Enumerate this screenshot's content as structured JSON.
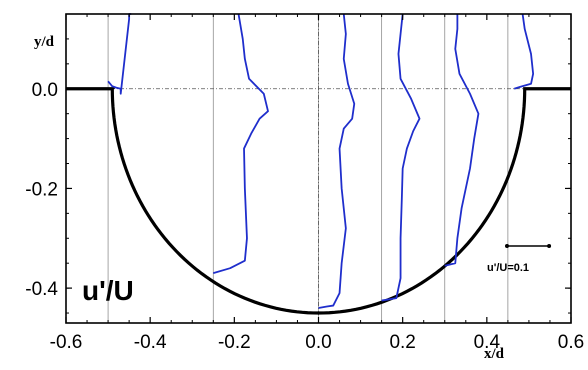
{
  "chart_data": {
    "type": "line",
    "xlabel": "x/d",
    "ylabel": "y/d",
    "panel_label": "u'/U",
    "scale_bar": {
      "label": "u'/U=0.1",
      "value": 0.1
    },
    "xlim": [
      -0.6,
      0.6
    ],
    "ylim": [
      -0.47,
      0.15
    ],
    "x_ticks": [
      -0.6,
      -0.4,
      -0.2,
      0.0,
      0.2,
      0.4,
      0.6
    ],
    "x_tick_labels": [
      "-0.6",
      "-0.4",
      "-0.2",
      "0.0",
      "0.2",
      "0.4",
      "0.6"
    ],
    "y_ticks": [
      0.0,
      -0.2,
      -0.4
    ],
    "y_tick_labels": [
      "0.0",
      "-0.2",
      "-0.4"
    ],
    "colors": {
      "profile": "#1f2ecc",
      "cavity": "#000000",
      "grid": "#909090"
    },
    "cavity_profile": {
      "description_free": true,
      "left_flat": [
        [
          -0.6,
          0.0
        ],
        [
          -0.49,
          0.0
        ]
      ],
      "arc_center": [
        0.0,
        0.0
      ],
      "arc_radius_x": 0.49,
      "arc_radius_y": 0.45,
      "right_flat": [
        [
          0.49,
          0.0
        ],
        [
          0.6,
          0.0
        ]
      ]
    },
    "stations": [
      -0.5,
      -0.25,
      0.0,
      0.15,
      0.3,
      0.45
    ],
    "series": [
      {
        "station": -0.5,
        "points": [
          [
            0.0,
            0.015
          ],
          [
            0.01,
            0.005
          ],
          [
            0.02,
            0.002
          ],
          [
            0.03,
            0.0
          ],
          [
            0.03,
            -0.01
          ],
          [
            0.05,
            0.14
          ],
          [
            0.05,
            0.15
          ],
          [
            0.055,
            0.15
          ]
        ]
      },
      {
        "station": -0.25,
        "points": [
          [
            0.0,
            -0.37
          ],
          [
            0.04,
            -0.36
          ],
          [
            0.075,
            -0.345
          ],
          [
            0.08,
            -0.3
          ],
          [
            0.075,
            -0.2
          ],
          [
            0.073,
            -0.12
          ],
          [
            0.09,
            -0.09
          ],
          [
            0.11,
            -0.06
          ],
          [
            0.13,
            -0.045
          ],
          [
            0.12,
            -0.01
          ],
          [
            0.085,
            0.02
          ],
          [
            0.075,
            0.06
          ],
          [
            0.07,
            0.1
          ],
          [
            0.06,
            0.15
          ]
        ]
      },
      {
        "station": 0.0,
        "points": [
          [
            0.0,
            -0.44
          ],
          [
            0.02,
            -0.437
          ],
          [
            0.035,
            -0.435
          ],
          [
            0.05,
            -0.41
          ],
          [
            0.055,
            -0.35
          ],
          [
            0.065,
            -0.28
          ],
          [
            0.055,
            -0.2
          ],
          [
            0.05,
            -0.12
          ],
          [
            0.06,
            -0.08
          ],
          [
            0.08,
            -0.06
          ],
          [
            0.085,
            -0.03
          ],
          [
            0.07,
            0.01
          ],
          [
            0.06,
            0.06
          ],
          [
            0.065,
            0.11
          ],
          [
            0.06,
            0.15
          ]
        ]
      },
      {
        "station": 0.15,
        "points": [
          [
            0.0,
            -0.425
          ],
          [
            0.035,
            -0.42
          ],
          [
            0.045,
            -0.38
          ],
          [
            0.045,
            -0.3
          ],
          [
            0.048,
            -0.22
          ],
          [
            0.05,
            -0.16
          ],
          [
            0.06,
            -0.12
          ],
          [
            0.075,
            -0.085
          ],
          [
            0.09,
            -0.06
          ],
          [
            0.07,
            -0.02
          ],
          [
            0.045,
            0.02
          ],
          [
            0.04,
            0.07
          ],
          [
            0.045,
            0.11
          ],
          [
            0.05,
            0.15
          ]
        ]
      },
      {
        "station": 0.3,
        "points": [
          [
            0.0,
            -0.355
          ],
          [
            0.025,
            -0.35
          ],
          [
            0.03,
            -0.3
          ],
          [
            0.04,
            -0.24
          ],
          [
            0.06,
            -0.16
          ],
          [
            0.07,
            -0.1
          ],
          [
            0.08,
            -0.05
          ],
          [
            0.06,
            -0.01
          ],
          [
            0.035,
            0.03
          ],
          [
            0.025,
            0.08
          ],
          [
            0.03,
            0.12
          ],
          [
            0.03,
            0.15
          ]
        ]
      },
      {
        "station": 0.45,
        "points": [
          [
            0.015,
            0.0
          ],
          [
            0.03,
            0.004
          ],
          [
            0.055,
            0.01
          ],
          [
            0.06,
            0.03
          ],
          [
            0.055,
            0.07
          ],
          [
            0.04,
            0.12
          ],
          [
            0.035,
            0.15
          ]
        ]
      }
    ]
  }
}
